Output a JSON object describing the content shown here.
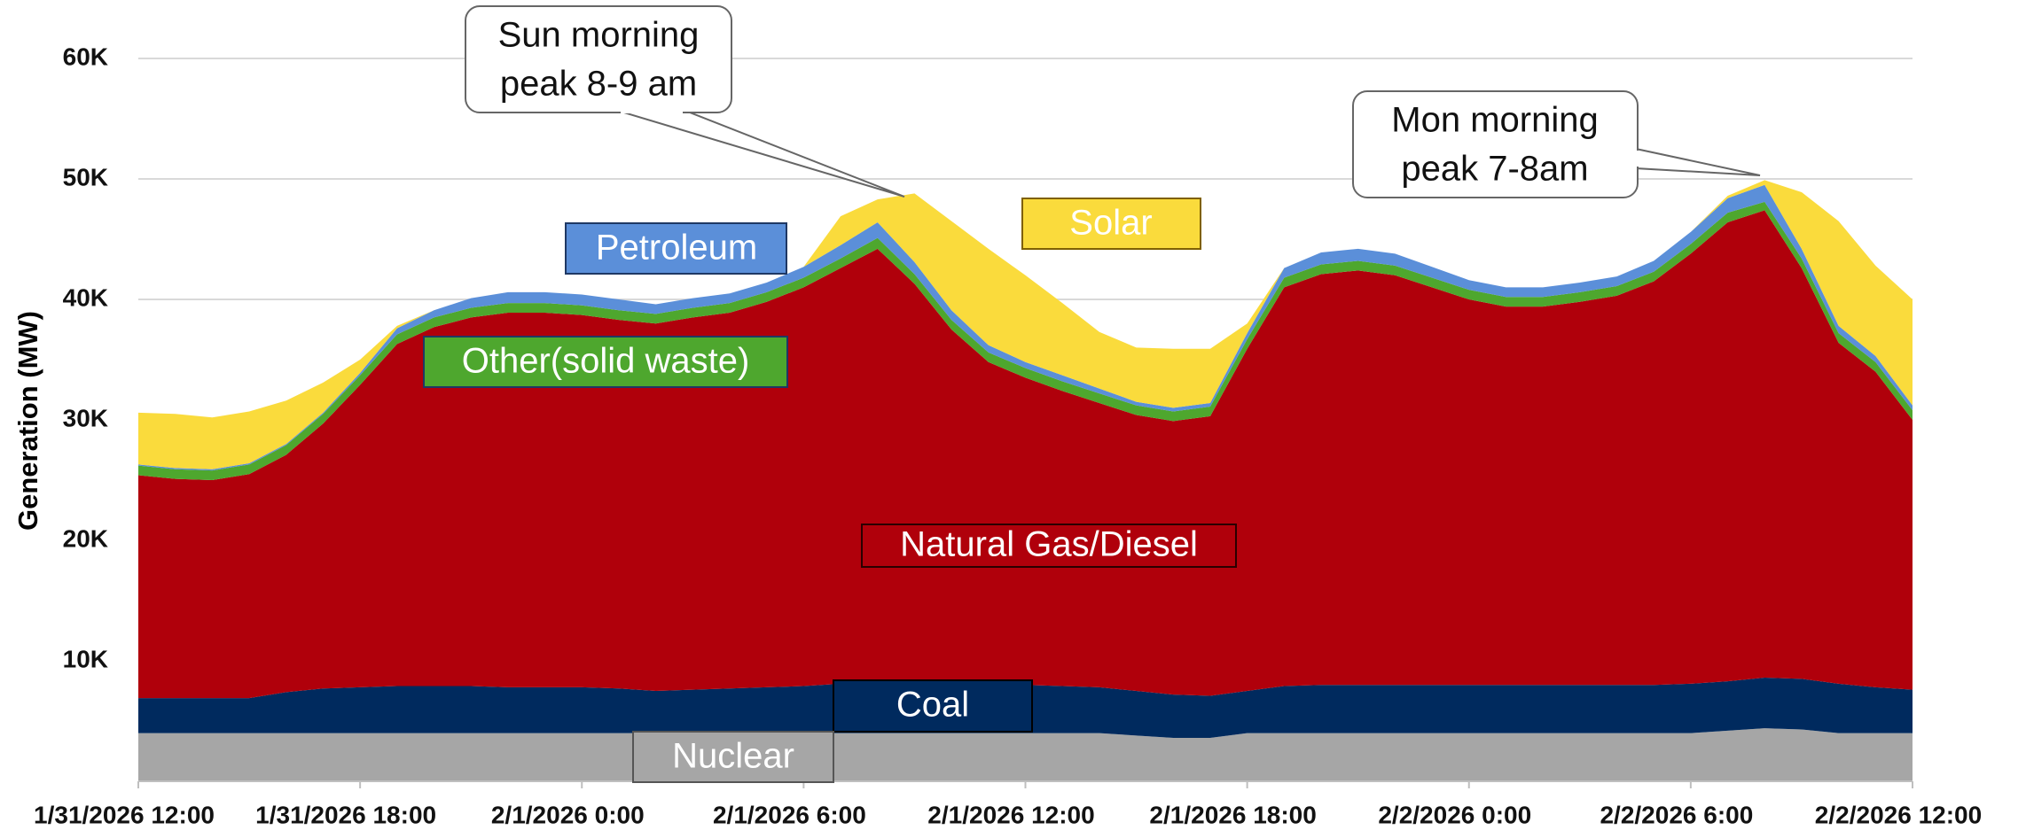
{
  "chart_data": {
    "type": "stacked_area",
    "y_label": "Generation (MW)",
    "ylim": [
      0,
      60000
    ],
    "yticks": [
      {
        "value": 10000,
        "label": "10K"
      },
      {
        "value": 20000,
        "label": "20K"
      },
      {
        "value": 30000,
        "label": "30K"
      },
      {
        "value": 40000,
        "label": "40K"
      },
      {
        "value": 50000,
        "label": "50K"
      },
      {
        "value": 60000,
        "label": "60K"
      }
    ],
    "grid": true,
    "categories": [
      "1/31/2026 12:00",
      null,
      null,
      null,
      null,
      null,
      "1/31/2026 18:00",
      null,
      null,
      null,
      null,
      null,
      "2/1/2026 0:00",
      null,
      null,
      null,
      null,
      null,
      "2/1/2026 6:00",
      null,
      null,
      null,
      null,
      null,
      "2/1/2026 12:00",
      null,
      null,
      null,
      null,
      null,
      "2/1/2026 18:00",
      null,
      null,
      null,
      null,
      null,
      "2/2/2026 0:00",
      null,
      null,
      null,
      null,
      null,
      "2/2/2026 6:00",
      null,
      null,
      null,
      null,
      null,
      "2/2/2026 12:00"
    ],
    "series": [
      {
        "name": "Nuclear",
        "color": "#a6a6a6",
        "values": [
          4000,
          4000,
          4000,
          4000,
          4000,
          4000,
          4000,
          4000,
          4000,
          4000,
          4000,
          4000,
          4000,
          4000,
          4000,
          4000,
          4000,
          4000,
          4000,
          4000,
          4000,
          4000,
          4000,
          4000,
          4000,
          4000,
          4000,
          3800,
          3600,
          3600,
          4000,
          4000,
          4000,
          4000,
          4000,
          4000,
          4000,
          4000,
          4000,
          4000,
          4000,
          4000,
          4000,
          4200,
          4400,
          4300,
          4000,
          4000,
          4000
        ]
      },
      {
        "name": "Coal",
        "color": "#002a5e",
        "values": [
          2900,
          2900,
          2900,
          2900,
          3400,
          3700,
          3800,
          3900,
          3900,
          3900,
          3800,
          3800,
          3800,
          3700,
          3500,
          3600,
          3700,
          3800,
          3900,
          4100,
          4300,
          4200,
          4100,
          4100,
          4000,
          3900,
          3800,
          3700,
          3600,
          3500,
          3500,
          3900,
          4000,
          4000,
          4000,
          4000,
          4000,
          4000,
          4000,
          4000,
          4000,
          4000,
          4100,
          4100,
          4200,
          4200,
          4100,
          3800,
          3600
        ]
      },
      {
        "name": "Natural Gas/Diesel",
        "color": "#b0000b",
        "values": [
          18500,
          18200,
          18100,
          18600,
          19700,
          22000,
          25100,
          28400,
          29800,
          30600,
          31100,
          31100,
          30900,
          30600,
          30500,
          30900,
          31200,
          32000,
          33100,
          34500,
          35900,
          33100,
          29400,
          26700,
          25500,
          24500,
          23600,
          22900,
          22700,
          23200,
          28400,
          33100,
          34100,
          34400,
          34000,
          33000,
          32000,
          31400,
          31400,
          31800,
          32300,
          33500,
          35700,
          38100,
          38800,
          34100,
          28300,
          26200,
          22400
        ]
      },
      {
        "name": "Other(solid waste)",
        "color": "#4ea72e",
        "values": [
          800,
          800,
          800,
          800,
          800,
          800,
          800,
          800,
          800,
          800,
          800,
          800,
          800,
          800,
          800,
          800,
          800,
          800,
          800,
          800,
          900,
          800,
          800,
          800,
          800,
          800,
          800,
          800,
          800,
          800,
          800,
          800,
          800,
          800,
          800,
          800,
          800,
          800,
          800,
          800,
          800,
          800,
          800,
          800,
          700,
          800,
          800,
          800,
          800
        ]
      },
      {
        "name": "Petroleum",
        "color": "#5b8fd9",
        "values": [
          100,
          100,
          100,
          100,
          100,
          100,
          200,
          500,
          600,
          800,
          900,
          900,
          900,
          900,
          800,
          800,
          800,
          800,
          900,
          1100,
          1300,
          1000,
          800,
          600,
          500,
          500,
          400,
          300,
          300,
          300,
          500,
          800,
          1000,
          1000,
          1000,
          900,
          800,
          800,
          800,
          800,
          800,
          900,
          1000,
          1200,
          1400,
          800,
          600,
          500,
          400
        ]
      },
      {
        "name": "Solar",
        "color": "#fadb3c",
        "values": [
          4300,
          4500,
          4300,
          4300,
          3600,
          2500,
          1100,
          200,
          0,
          0,
          0,
          0,
          0,
          0,
          0,
          0,
          0,
          0,
          0,
          2400,
          1900,
          5700,
          7400,
          8000,
          7200,
          6000,
          4700,
          4500,
          4900,
          4500,
          800,
          0,
          0,
          0,
          0,
          0,
          0,
          0,
          0,
          0,
          0,
          0,
          0,
          200,
          400,
          4700,
          8700,
          7500,
          8800
        ]
      }
    ],
    "annotations": [
      {
        "lines": [
          "Sun morning",
          "peak 8-9 am"
        ]
      },
      {
        "lines": [
          "Mon morning",
          "peak 7-8am"
        ]
      }
    ]
  }
}
